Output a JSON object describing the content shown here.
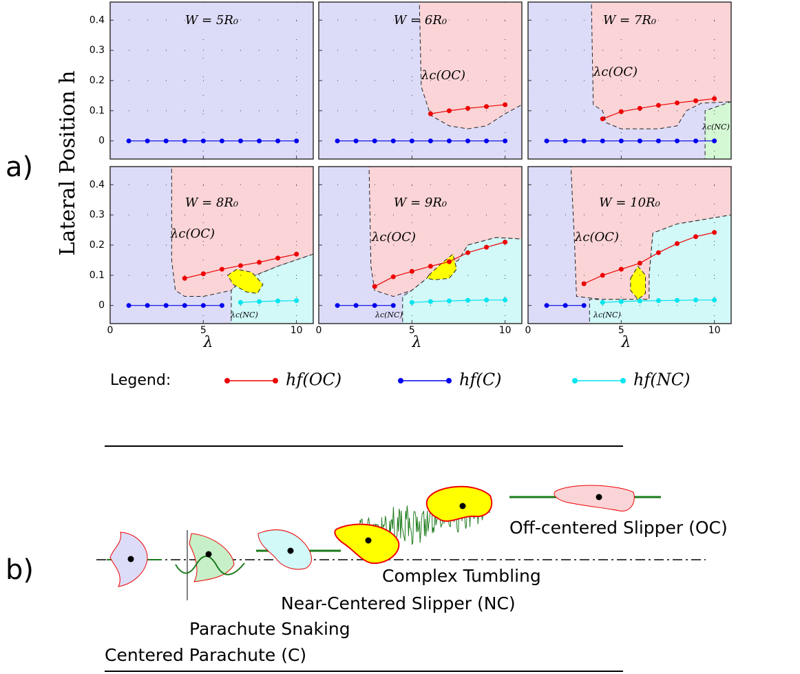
{
  "panel_labels": [
    "a)",
    "b)"
  ],
  "ylabel": "Lateral Position h",
  "legend": {
    "title": "Legend:",
    "entries": [
      {
        "name": "hf(OC)",
        "color": "#ee0000"
      },
      {
        "name": "hf(C)",
        "color": "#0000ee"
      },
      {
        "name": "hf(NC)",
        "color": "#00e5ee"
      }
    ]
  },
  "regimes": [
    "Off-centered Slipper (OC)",
    "Complex Tumbling",
    "Near-Centered Slipper (NC)",
    "Parachute Snaking",
    "Centered Parachute (C)"
  ],
  "chart_data": [
    {
      "type": "line",
      "title": "W = 5R₀",
      "annotations": [],
      "xlim": [
        0,
        10.9
      ],
      "ylim": [
        -0.06,
        0.46
      ],
      "xticks": [
        0,
        5,
        10
      ],
      "yticks": [
        0,
        0.1,
        0.2,
        0.3,
        0.4
      ],
      "grid": true,
      "background": "#dcdcf8",
      "regions": [],
      "series": [
        {
          "color": "#0000ee",
          "x": [
            1,
            2,
            3,
            4,
            5,
            6,
            7,
            8,
            9,
            10
          ],
          "values": [
            0,
            0,
            0,
            0,
            0,
            0,
            0,
            0,
            0,
            0
          ]
        }
      ]
    },
    {
      "type": "line",
      "title": "W = 6R₀",
      "annotations": [
        "λc(OC)"
      ],
      "xlim": [
        0,
        10.9
      ],
      "ylim": [
        -0.06,
        0.46
      ],
      "xticks": [
        0,
        5,
        10
      ],
      "yticks": [
        0,
        0.1,
        0.2,
        0.3,
        0.4
      ],
      "grid": true,
      "background": "#dcdcf8",
      "regions": [
        {
          "color": "#fad4d6",
          "x": [
            5.4,
            10.9,
            10.9,
            10,
            9,
            8,
            7,
            6,
            5.5
          ],
          "y": [
            0.46,
            0.46,
            0.12,
            0.09,
            0.05,
            0.04,
            0.05,
            0.085,
            0.18
          ]
        }
      ],
      "series": [
        {
          "color": "#ee0000",
          "x": [
            6,
            7,
            8,
            9,
            10
          ],
          "values": [
            0.09,
            0.1,
            0.108,
            0.114,
            0.12
          ]
        },
        {
          "color": "#0000ee",
          "x": [
            1,
            2,
            3,
            4,
            5,
            6,
            7,
            8,
            9,
            10
          ],
          "values": [
            0,
            0,
            0,
            0,
            0,
            0,
            0,
            0,
            0,
            0
          ]
        }
      ]
    },
    {
      "type": "line",
      "title": "W = 7R₀",
      "annotations": [
        "λc(OC)",
        "λc(NC)"
      ],
      "xlim": [
        0,
        10.9
      ],
      "ylim": [
        -0.06,
        0.46
      ],
      "xticks": [
        0,
        5,
        10
      ],
      "yticks": [
        0,
        0.1,
        0.2,
        0.3,
        0.4
      ],
      "grid": true,
      "background": "#dcdcf8",
      "regions": [
        {
          "color": "#fad4d6",
          "x": [
            3.4,
            10.9,
            10.9,
            9.3,
            8.5,
            8,
            7,
            5,
            4.2,
            4,
            3.5
          ],
          "y": [
            0.46,
            0.46,
            0.13,
            0.125,
            0.1,
            0.05,
            0.04,
            0.04,
            0.06,
            0.1,
            0.12
          ]
        },
        {
          "color": "#d4f7d4",
          "x": [
            9.5,
            10.9,
            10.9,
            9.5
          ],
          "y": [
            -0.06,
            -0.06,
            0.13,
            0.1
          ]
        }
      ],
      "series": [
        {
          "color": "#ee0000",
          "x": [
            4,
            5,
            6,
            7,
            8,
            9,
            10
          ],
          "values": [
            0.073,
            0.097,
            0.108,
            0.118,
            0.126,
            0.133,
            0.14
          ]
        },
        {
          "color": "#0000ee",
          "x": [
            1,
            2,
            3,
            4,
            5,
            6,
            7,
            8,
            9,
            10
          ],
          "values": [
            0,
            0,
            0,
            0,
            0,
            0,
            0,
            0,
            0,
            0
          ]
        }
      ]
    },
    {
      "type": "line",
      "title": "W = 8R₀",
      "xlabel": "λ",
      "annotations": [
        "λc(OC)",
        "λc(NC)"
      ],
      "xlim": [
        0,
        10.9
      ],
      "ylim": [
        -0.06,
        0.46
      ],
      "xticks": [
        0,
        5,
        10
      ],
      "yticks": [
        0,
        0.1,
        0.2,
        0.3,
        0.4
      ],
      "grid": true,
      "background": "#dcdcf8",
      "regions": [
        {
          "color": "#fad4d6",
          "x": [
            3.3,
            10.9,
            10.9,
            9,
            7,
            6.5,
            5,
            4,
            3.5,
            3.3
          ],
          "y": [
            0.46,
            0.46,
            0.17,
            0.13,
            0.08,
            0.05,
            0.03,
            0.03,
            0.05,
            0.15
          ]
        },
        {
          "color": "#d2f8f8",
          "x": [
            6.5,
            10.9,
            10.9,
            9,
            7,
            6.5
          ],
          "y": [
            -0.06,
            -0.06,
            0.17,
            0.13,
            0.08,
            0.05
          ]
        },
        {
          "color": "#ffff00",
          "x": [
            6.3,
            6.8,
            7.6,
            8.2,
            7.9,
            7.3,
            6.6
          ],
          "y": [
            0.1,
            0.12,
            0.11,
            0.07,
            0.04,
            0.045,
            0.07
          ]
        }
      ],
      "series": [
        {
          "color": "#ee0000",
          "x": [
            4,
            5,
            6,
            7,
            8,
            9,
            10
          ],
          "values": [
            0.09,
            0.105,
            0.12,
            0.132,
            0.143,
            0.157,
            0.17
          ]
        },
        {
          "color": "#0000ee",
          "x": [
            1,
            2,
            3,
            4,
            5,
            6
          ],
          "values": [
            0,
            0,
            0,
            0,
            0,
            0
          ]
        },
        {
          "color": "#00e5ee",
          "x": [
            7,
            8,
            9,
            10
          ],
          "values": [
            0.01,
            0.013,
            0.015,
            0.016
          ]
        }
      ]
    },
    {
      "type": "line",
      "title": "W = 9R₀",
      "xlabel": "λ",
      "annotations": [
        "λc(OC)",
        "λc(NC)"
      ],
      "xlim": [
        0,
        10.9
      ],
      "ylim": [
        -0.06,
        0.46
      ],
      "xticks": [
        0,
        5,
        10
      ],
      "yticks": [
        0,
        0.1,
        0.2,
        0.3,
        0.4
      ],
      "grid": true,
      "background": "#dcdcf8",
      "regions": [
        {
          "color": "#fad4d6",
          "x": [
            2.7,
            10.9,
            10.9,
            9.5,
            8,
            7.5,
            6,
            5,
            4,
            3,
            2.8
          ],
          "y": [
            0.46,
            0.46,
            0.22,
            0.225,
            0.2,
            0.15,
            0.1,
            0.05,
            0.03,
            0.05,
            0.13
          ]
        },
        {
          "color": "#d2f8f8",
          "x": [
            4.5,
            10.9,
            10.9,
            9.5,
            8,
            7.5,
            6,
            5,
            4.5
          ],
          "y": [
            -0.06,
            -0.06,
            0.22,
            0.225,
            0.2,
            0.15,
            0.1,
            0.05,
            0.03
          ]
        },
        {
          "color": "#ffff00",
          "x": [
            5.9,
            6.6,
            7.2,
            7.4,
            7.0,
            6.2,
            5.8
          ],
          "y": [
            0.1,
            0.14,
            0.17,
            0.12,
            0.09,
            0.085,
            0.09
          ]
        }
      ],
      "series": [
        {
          "color": "#ee0000",
          "x": [
            3,
            4,
            5,
            6,
            7,
            8,
            9,
            10
          ],
          "values": [
            0.063,
            0.095,
            0.113,
            0.13,
            0.145,
            0.175,
            0.193,
            0.21
          ]
        },
        {
          "color": "#0000ee",
          "x": [
            1,
            2,
            3,
            4
          ],
          "values": [
            0,
            0,
            0,
            0
          ]
        },
        {
          "color": "#00e5ee",
          "x": [
            5,
            6,
            7,
            8,
            9,
            10
          ],
          "values": [
            0.01,
            0.013,
            0.015,
            0.017,
            0.018,
            0.018
          ]
        }
      ]
    },
    {
      "type": "line",
      "title": "W = 10R₀",
      "xlabel": "λ",
      "annotations": [
        "λc(OC)",
        "λc(NC)"
      ],
      "xlim": [
        0,
        10.9
      ],
      "ylim": [
        -0.06,
        0.46
      ],
      "xticks": [
        0,
        5,
        10
      ],
      "yticks": [
        0,
        0.1,
        0.2,
        0.3,
        0.4
      ],
      "grid": true,
      "background": "#dcdcf8",
      "regions": [
        {
          "color": "#fad4d6",
          "x": [
            2.3,
            10.9,
            10.9,
            8,
            6.7,
            6.5,
            6.5,
            4,
            2.6,
            2.5
          ],
          "y": [
            0.46,
            0.46,
            0.3,
            0.27,
            0.24,
            0.1,
            0.02,
            0.02,
            0.03,
            0.2
          ]
        },
        {
          "color": "#d2f8f8",
          "x": [
            3.3,
            10.9,
            10.9,
            8,
            6.7,
            6.5,
            6.5,
            3.3
          ],
          "y": [
            -0.06,
            -0.06,
            0.3,
            0.27,
            0.24,
            0.1,
            0.02,
            0.02
          ]
        },
        {
          "color": "#ffff00",
          "x": [
            5.5,
            5.9,
            6.3,
            6.3,
            5.9,
            5.5
          ],
          "y": [
            0.09,
            0.13,
            0.1,
            0.04,
            0.02,
            0.05
          ]
        }
      ],
      "series": [
        {
          "color": "#ee0000",
          "x": [
            3,
            4,
            5,
            6,
            7,
            8,
            9,
            10
          ],
          "values": [
            0.072,
            0.1,
            0.12,
            0.14,
            0.175,
            0.205,
            0.228,
            0.242
          ]
        },
        {
          "color": "#0000ee",
          "x": [
            1,
            2,
            3
          ],
          "values": [
            0,
            0,
            0
          ]
        },
        {
          "color": "#00e5ee",
          "x": [
            4,
            5,
            6,
            7,
            8,
            9,
            10
          ],
          "values": [
            0.01,
            0.013,
            0.015,
            0.016,
            0.017,
            0.018,
            0.018
          ]
        }
      ]
    }
  ]
}
